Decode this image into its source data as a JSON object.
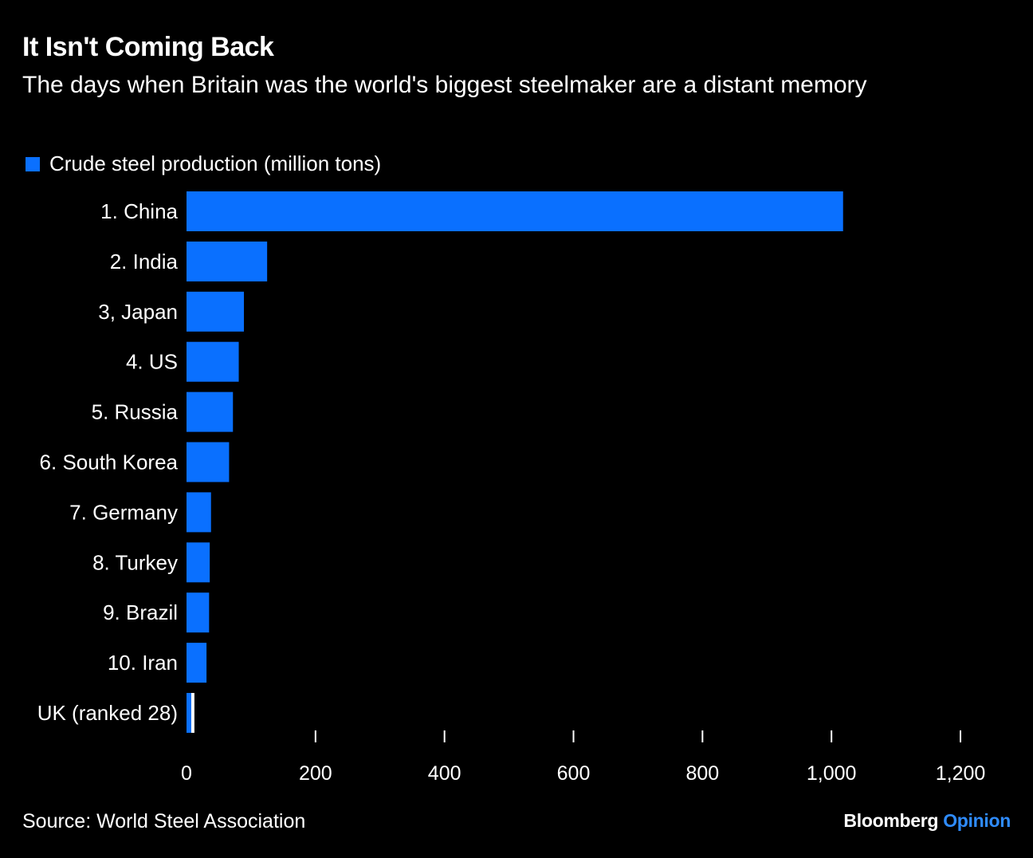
{
  "header": {
    "title": "It Isn't Coming Back",
    "subtitle": "The days when Britain was the world's biggest steelmaker are a distant memory"
  },
  "legend": {
    "label": "Crude steel production (million tons)"
  },
  "colors": {
    "bar": "#0a70ff",
    "highlight": "#ffffff",
    "background": "#000000"
  },
  "chart_data": {
    "type": "bar",
    "orientation": "horizontal",
    "title": "It Isn't Coming Back",
    "subtitle": "The days when Britain was the world's biggest steelmaker are a distant memory",
    "categories": [
      "1. China",
      "2. India",
      "3, Japan",
      "4. US",
      "5. Russia",
      "6. South Korea",
      "7. Germany",
      "8. Turkey",
      "9. Brazil",
      "10. Iran",
      "UK (ranked 28)"
    ],
    "series": [
      {
        "name": "Crude steel production (million tons)",
        "values": [
          1018,
          125,
          89,
          81,
          72,
          66,
          38,
          36,
          35,
          31,
          7.3
        ]
      }
    ],
    "xlim": [
      0,
      1200
    ],
    "xticks": [
      0,
      200,
      400,
      600,
      800,
      1000,
      1200
    ],
    "xtick_labels": [
      "0",
      "200",
      "400",
      "600",
      "800",
      "1,000",
      "1,200"
    ],
    "xlabel": "",
    "ylabel": "",
    "highlight_category": "UK (ranked 28)",
    "grid": false
  },
  "footer": {
    "source": "Source: World Steel Association",
    "brand_main": "Bloomberg",
    "brand_sub": "Opinion"
  }
}
